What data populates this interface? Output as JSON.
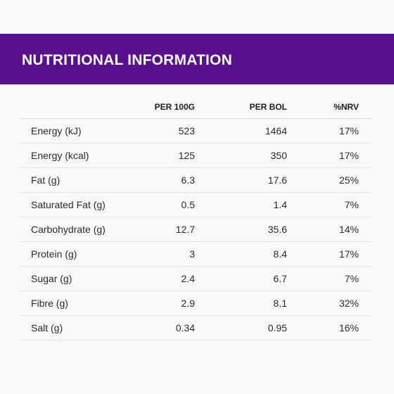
{
  "banner": {
    "title": "NUTRITIONAL INFORMATION",
    "color": "#5a0f8c"
  },
  "table": {
    "columns": [
      "",
      "PER 100G",
      "PER BOL",
      "%NRV"
    ],
    "rows": [
      {
        "name": "Energy (kJ)",
        "per100g": "523",
        "perbol": "1464",
        "nrv": "17%"
      },
      {
        "name": "Energy (kcal)",
        "per100g": "125",
        "perbol": "350",
        "nrv": "17%"
      },
      {
        "name": "Fat (g)",
        "per100g": "6.3",
        "perbol": "17.6",
        "nrv": "25%"
      },
      {
        "name": "Saturated Fat (g)",
        "per100g": "0.5",
        "perbol": "1.4",
        "nrv": "7%"
      },
      {
        "name": "Carbohydrate (g)",
        "per100g": "12.7",
        "perbol": "35.6",
        "nrv": "14%"
      },
      {
        "name": "Protein (g)",
        "per100g": "3",
        "perbol": "8.4",
        "nrv": "17%"
      },
      {
        "name": "Sugar (g)",
        "per100g": "2.4",
        "perbol": "6.7",
        "nrv": "7%"
      },
      {
        "name": "Fibre (g)",
        "per100g": "2.9",
        "perbol": "8.1",
        "nrv": "32%"
      },
      {
        "name": "Salt (g)",
        "per100g": "0.34",
        "perbol": "0.95",
        "nrv": "16%"
      }
    ]
  }
}
